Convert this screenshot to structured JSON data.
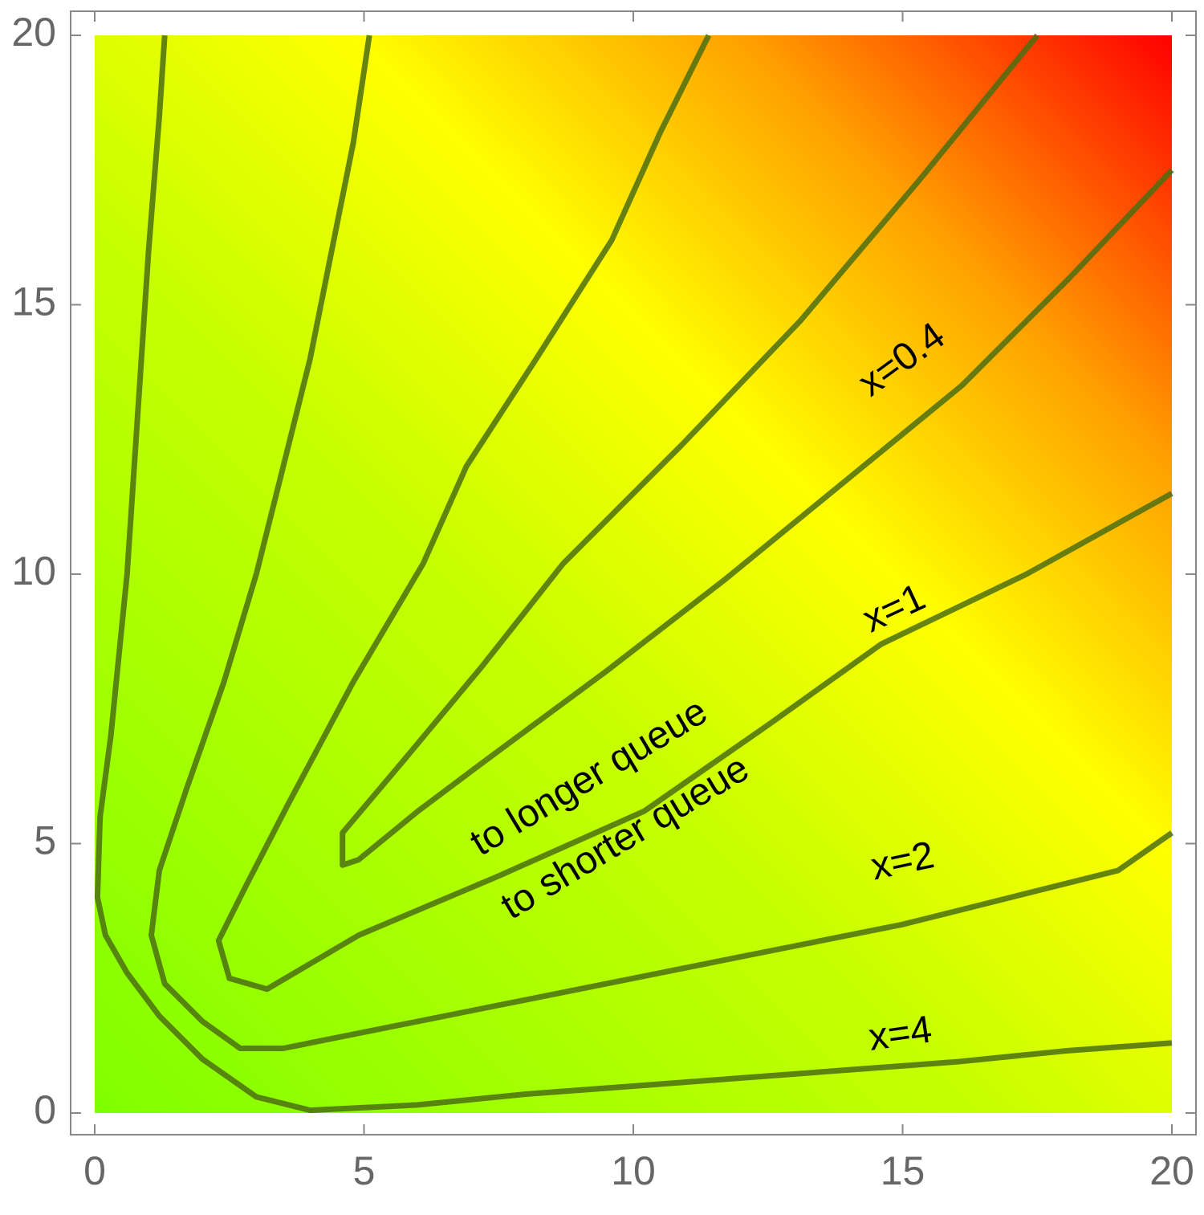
{
  "chart_data": {
    "type": "contour",
    "xlim": [
      0,
      20
    ],
    "ylim": [
      0,
      20
    ],
    "xticks": [
      0,
      5,
      10,
      15,
      20
    ],
    "yticks": [
      0,
      5,
      10,
      15,
      20
    ],
    "colormap": [
      "#7fff00",
      "#c8ff00",
      "#ffff00",
      "#ffa000",
      "#ff0000"
    ],
    "line_color": "#4b6e12",
    "series": [
      {
        "name": "x=4",
        "x": [
          1.3,
          1.2,
          1.0,
          0.8,
          0.6,
          0.3,
          0.1,
          0.05,
          0.2,
          0.6,
          1.2,
          2.0,
          3.0,
          4.0,
          6.0,
          8.0,
          10.0,
          12.0,
          14.0,
          16.0,
          18.0,
          20.0
        ],
        "values": [
          20,
          18.5,
          16,
          13,
          10,
          7,
          5.5,
          4,
          3.3,
          2.6,
          1.8,
          1.0,
          0.3,
          0.05,
          0.15,
          0.35,
          0.5,
          0.65,
          0.8,
          0.95,
          1.15,
          1.3
        ]
      },
      {
        "name": "x=2",
        "x": [
          5.1,
          4.8,
          4.4,
          4.0,
          3.5,
          3.0,
          2.4,
          1.7,
          1.2,
          1.05,
          1.3,
          2.0,
          2.7,
          3.5,
          5.0,
          7.0,
          9.0,
          11.0,
          13.0,
          15.0,
          17.0,
          19.0,
          20.0
        ],
        "values": [
          20,
          18,
          16,
          14,
          12,
          10,
          8,
          6,
          4.5,
          3.3,
          2.4,
          1.7,
          1.2,
          1.2,
          1.5,
          1.9,
          2.3,
          2.7,
          3.1,
          3.5,
          4.0,
          4.5,
          5.2
        ]
      },
      {
        "name": "x=1",
        "x": [
          11.4,
          10.5,
          9.6,
          8.2,
          6.9,
          6.1,
          4.8,
          3.6,
          2.8,
          2.3,
          2.5,
          3.2,
          4.9,
          7.5,
          10.2,
          12.5,
          14.6,
          17.3,
          20.0
        ],
        "values": [
          20,
          18.2,
          16.2,
          14,
          12,
          10.2,
          8,
          5.75,
          4.2,
          3.2,
          2.5,
          2.3,
          3.3,
          4.4,
          5.6,
          7.2,
          8.7,
          10.0,
          11.5
        ]
      },
      {
        "name": "x=0.4",
        "x": [
          17.5,
          15.3,
          13.1,
          10.9,
          8.7,
          7.2,
          5.7,
          4.6,
          4.6,
          4.9,
          6.0,
          7.2,
          9.5,
          11.7,
          13.9,
          16.1,
          18.1,
          20.0
        ],
        "values": [
          20,
          17.3,
          14.7,
          12.4,
          10.2,
          8.3,
          6.5,
          5.2,
          4.6,
          4.7,
          5.6,
          6.5,
          8.2,
          9.9,
          11.7,
          13.5,
          15.5,
          17.5
        ]
      }
    ],
    "annotations": [
      "to longer queue",
      "to shorter queue"
    ]
  }
}
